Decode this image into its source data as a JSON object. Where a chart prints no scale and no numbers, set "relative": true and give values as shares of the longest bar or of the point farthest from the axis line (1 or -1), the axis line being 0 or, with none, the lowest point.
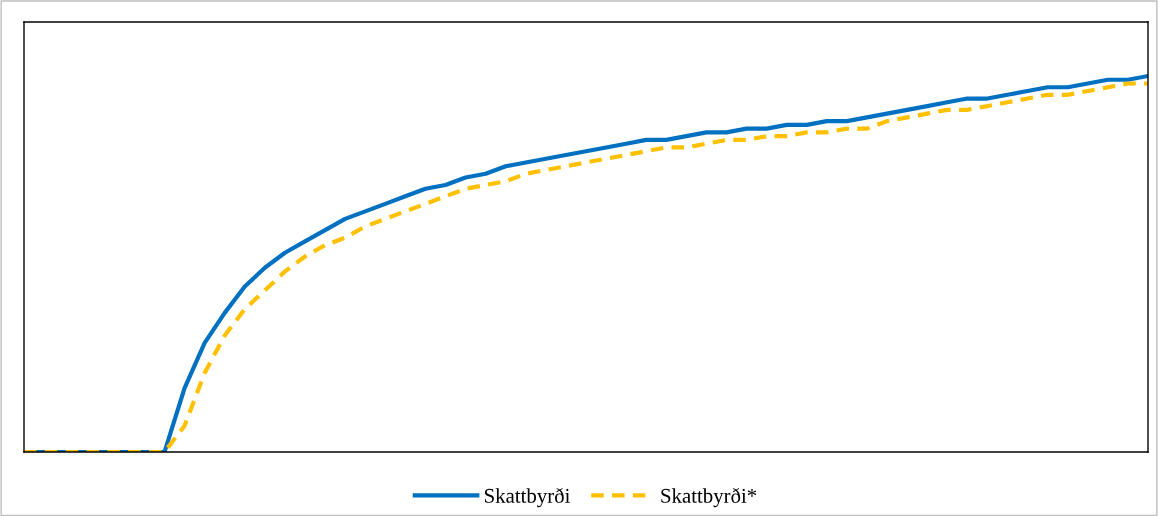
{
  "chart_data": {
    "type": "line",
    "relative": true,
    "legend": "bottom",
    "categories": [
      null,
      null,
      null,
      null,
      null,
      null,
      null,
      null,
      null,
      null,
      null,
      null,
      null,
      null,
      null,
      null,
      null,
      null,
      null,
      null,
      null,
      null,
      null,
      null,
      null,
      null,
      null,
      null,
      null,
      null,
      null,
      null,
      null,
      null,
      null,
      null,
      null,
      null,
      null,
      null,
      null,
      null,
      null,
      null,
      null,
      null,
      null,
      null,
      null,
      null,
      null,
      null,
      null,
      null,
      null,
      null,
      null
    ],
    "series": [
      {
        "name": "Skattbyrði",
        "color": "#0070c0",
        "line_style": "solid",
        "values": [
          0,
          0,
          0,
          0,
          0,
          0,
          0,
          0,
          0.17,
          0.29,
          0.37,
          0.44,
          0.49,
          0.53,
          0.56,
          0.59,
          0.62,
          0.64,
          0.66,
          0.68,
          0.7,
          0.71,
          0.73,
          0.74,
          0.76,
          0.77,
          0.78,
          0.79,
          0.8,
          0.81,
          0.82,
          0.83,
          0.83,
          0.84,
          0.85,
          0.85,
          0.86,
          0.86,
          0.87,
          0.87,
          0.88,
          0.88,
          0.89,
          0.9,
          0.91,
          0.92,
          0.93,
          0.94,
          0.94,
          0.95,
          0.96,
          0.97,
          0.97,
          0.98,
          0.99,
          0.99,
          1
        ]
      },
      {
        "name": "Skattbyrði*",
        "color": "#ffc000",
        "line_style": "dashed",
        "values": [
          0,
          0,
          0,
          0,
          0,
          0,
          0,
          0,
          0.07,
          0.21,
          0.31,
          0.38,
          0.43,
          0.48,
          0.52,
          0.55,
          0.57,
          0.6,
          0.62,
          0.64,
          0.66,
          0.68,
          0.7,
          0.71,
          0.72,
          0.74,
          0.75,
          0.76,
          0.77,
          0.78,
          0.79,
          0.8,
          0.81,
          0.81,
          0.82,
          0.83,
          0.83,
          0.84,
          0.84,
          0.85,
          0.85,
          0.86,
          0.86,
          0.88,
          0.89,
          0.9,
          0.91,
          0.91,
          0.92,
          0.93,
          0.94,
          0.95,
          0.95,
          0.96,
          0.97,
          0.98,
          0.98
        ]
      }
    ]
  }
}
